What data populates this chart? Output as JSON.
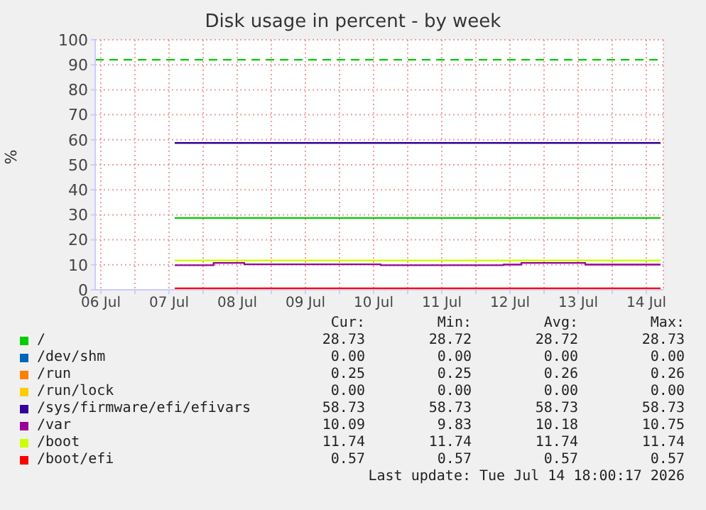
{
  "chart_data": {
    "type": "line",
    "title": "Disk usage in percent - by week",
    "ylabel": "%",
    "xlim": [
      "2026-07-06T10:00",
      "2026-07-14T18:00"
    ],
    "xticks": [
      {
        "value": "2026-07-06T12:00",
        "label": "06 Jul"
      },
      {
        "value": "2026-07-07T00:00",
        "label": null
      },
      {
        "value": "2026-07-07T12:00",
        "label": "07 Jul"
      },
      {
        "value": "2026-07-08T00:00",
        "label": null
      },
      {
        "value": "2026-07-08T12:00",
        "label": "08 Jul"
      },
      {
        "value": "2026-07-09T00:00",
        "label": null
      },
      {
        "value": "2026-07-09T12:00",
        "label": "09 Jul"
      },
      {
        "value": "2026-07-10T00:00",
        "label": null
      },
      {
        "value": "2026-07-10T12:00",
        "label": "10 Jul"
      },
      {
        "value": "2026-07-11T00:00",
        "label": null
      },
      {
        "value": "2026-07-11T12:00",
        "label": "11 Jul"
      },
      {
        "value": "2026-07-12T00:00",
        "label": null
      },
      {
        "value": "2026-07-12T12:00",
        "label": "12 Jul"
      },
      {
        "value": "2026-07-13T00:00",
        "label": null
      },
      {
        "value": "2026-07-13T12:00",
        "label": "13 Jul"
      },
      {
        "value": "2026-07-14T00:00",
        "label": null
      },
      {
        "value": "2026-07-14T12:00",
        "label": "14 Jul"
      }
    ],
    "ylim": [
      0,
      100
    ],
    "yticks": [
      0,
      10,
      20,
      30,
      40,
      50,
      60,
      70,
      80,
      90,
      100
    ],
    "grid": true,
    "legend": "bottom",
    "series": [
      {
        "name": "/",
        "color": "#00cc00",
        "x": [
          "2026-07-07T14:00",
          "2026-07-14T17:00"
        ],
        "values": [
          28.73,
          28.73
        ]
      },
      {
        "name": "/dev/shm",
        "color": "#0066b3",
        "values": [
          null
        ]
      },
      {
        "name": "/run",
        "color": "#ff8000",
        "values": [
          null
        ]
      },
      {
        "name": "/run/lock",
        "color": "#ffcc00",
        "values": [
          null
        ]
      },
      {
        "name": "/sys/firmware/efi/efivars",
        "color": "#330099",
        "x": [
          "2026-07-07T14:00",
          "2026-07-14T17:00"
        ],
        "values": [
          58.73,
          58.73
        ]
      },
      {
        "name": "/var",
        "color": "#990099",
        "type": "step",
        "x": [
          "2026-07-07T14:00",
          "2026-07-08T03:40",
          "2026-07-08T14:30",
          "2026-07-10T14:30",
          "2026-07-12T09:40",
          "2026-07-12T16:00",
          "2026-07-13T14:30",
          "2026-07-14T17:00"
        ],
        "values": [
          9.83,
          10.75,
          10.18,
          9.83,
          10.09,
          10.75,
          10.09,
          10.09
        ]
      },
      {
        "name": "/boot",
        "color": "#ccff00",
        "x": [
          "2026-07-07T14:00",
          "2026-07-14T17:00"
        ],
        "values": [
          11.74,
          11.74
        ]
      },
      {
        "name": "/boot/efi",
        "color": "#ff0000",
        "x": [
          "2026-07-07T14:00",
          "2026-07-14T17:00"
        ],
        "values": [
          0.57,
          0.57
        ]
      }
    ],
    "ref_lines": [
      {
        "axis": "y",
        "value": 92,
        "color": "#00cc00",
        "line_style": "dashed"
      }
    ],
    "annotations": [
      "Cur:",
      "Min:",
      "Avg:",
      "Max:",
      "28.73",
      "28.72",
      "28.72",
      "28.73",
      "0.00",
      "0.00",
      "0.00",
      "0.00",
      "0.25",
      "0.25",
      "0.26",
      "0.26",
      "0.00",
      "0.00",
      "0.00",
      "0.00",
      "58.73",
      "58.73",
      "58.73",
      "58.73",
      "10.09",
      "9.83",
      "10.18",
      "10.75",
      "11.74",
      "11.74",
      "11.74",
      "11.74",
      "0.57",
      "0.57",
      "0.57",
      "0.57",
      "Last update: Tue Jul 14 18:00:17 2026"
    ]
  }
}
